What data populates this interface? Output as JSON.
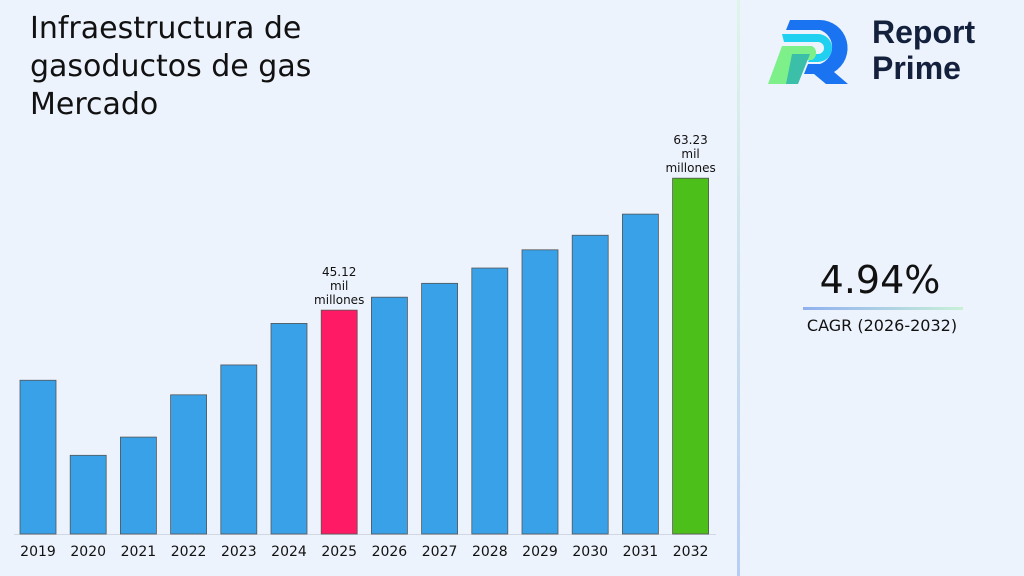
{
  "title": "Infraestructura de gasoductos de gas Mercado",
  "logo": {
    "line1": "Report",
    "line2": "Prime"
  },
  "cagr": {
    "value": "4.94%",
    "label": "CAGR (2026-2032)"
  },
  "chart_data": {
    "type": "bar",
    "title": "Infraestructura de gasoductos de gas Mercado",
    "categories": [
      "2019",
      "2020",
      "2021",
      "2022",
      "2023",
      "2024",
      "2025",
      "2026",
      "2027",
      "2028",
      "2029",
      "2030",
      "2031",
      "2032"
    ],
    "values": [
      35.5,
      25.2,
      27.7,
      33.5,
      37.6,
      43.3,
      45.12,
      46.9,
      48.8,
      50.9,
      53.4,
      55.4,
      58.3,
      63.23
    ],
    "ylim": [
      14.4,
      66
    ],
    "colors": {
      "default": "#38a1e8",
      "highlight_2025": "#ff1a66",
      "highlight_2032": "#4cbf1a"
    },
    "data_labels": [
      {
        "category": "2025",
        "lines": [
          "45.12",
          "mil",
          "millones"
        ]
      },
      {
        "category": "2032",
        "lines": [
          "63.23",
          "mil",
          "millones"
        ]
      }
    ],
    "grid": false,
    "legend": "none"
  }
}
